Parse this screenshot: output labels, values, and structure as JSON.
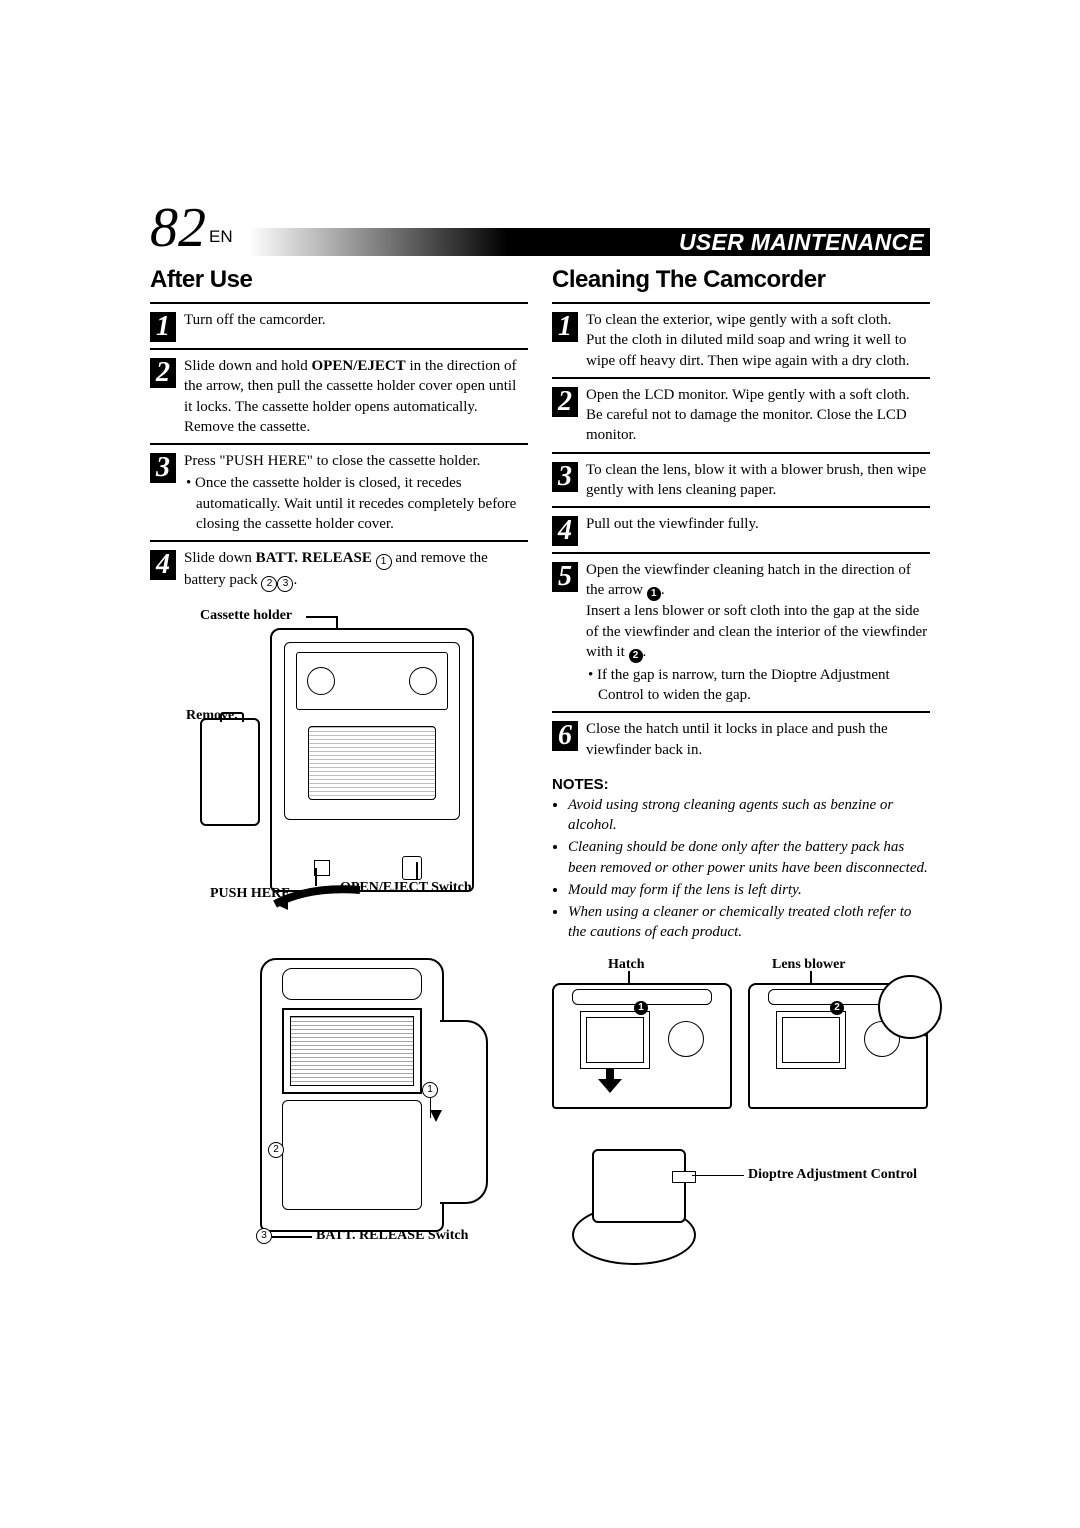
{
  "pageNumber": "82",
  "langSuffix": "EN",
  "ribbonTitle": "USER MAINTENANCE",
  "leftColumn": {
    "heading": "After Use",
    "steps": [
      {
        "num": "1",
        "html": "Turn off the camcorder."
      },
      {
        "num": "2",
        "html": "Slide down and hold <span class='b'>OPEN/EJECT</span> in the direction of the arrow, then pull the cassette holder cover open until it locks. The cassette holder opens automatically. Remove the cassette."
      },
      {
        "num": "3",
        "html": "Press \"PUSH HERE\" to close the cassette holder.<span class='bullet'>• Once the cassette holder is closed, it recedes automatically. Wait until it recedes completely before closing the cassette holder cover.</span>"
      },
      {
        "num": "4",
        "html": "Slide down <span class='b'>BATT. RELEASE</span> <span class='circ'>1</span> and remove the battery pack <span class='circ'>2</span><span class='circ'>3</span>."
      }
    ],
    "labels": {
      "cassetteHolder": "Cassette holder",
      "remove": "Remove.",
      "pushHere": "PUSH HERE",
      "openEject": "OPEN/EJECT Switch",
      "battRelease": "BATT. RELEASE Switch"
    },
    "circles": {
      "c1": "1",
      "c2": "2",
      "c3": "3"
    }
  },
  "rightColumn": {
    "heading": "Cleaning The Camcorder",
    "steps": [
      {
        "num": "1",
        "html": "To clean the exterior, wipe gently with a soft cloth.<br>Put the cloth in diluted mild soap and wring it well to wipe off heavy dirt. Then wipe again with a dry cloth."
      },
      {
        "num": "2",
        "html": "Open the LCD monitor. Wipe gently with a soft cloth.  Be careful not to damage the monitor. Close the LCD monitor."
      },
      {
        "num": "3",
        "html": "To clean the lens, blow it with a blower brush, then wipe gently with lens cleaning paper."
      },
      {
        "num": "4",
        "html": "Pull out the viewfinder fully."
      },
      {
        "num": "5",
        "html": "Open the viewfinder cleaning hatch in the direction of the arrow <span class='solidcirc'>1</span>.<br>Insert a lens blower or soft cloth into the gap at the side of the viewfinder and clean the interior of the viewfinder with it <span class='solidcirc'>2</span>.<span class='bullet'>• If the gap is narrow, turn the Dioptre Adjustment Control to widen the gap.</span>"
      },
      {
        "num": "6",
        "html": "Close the hatch until it locks in place and push the viewfinder back in."
      }
    ],
    "notesHead": "NOTES:",
    "notes": [
      "Avoid using strong cleaning agents such as benzine or alcohol.",
      "Cleaning should be done only after the battery pack has been removed or other power units have been disconnected.",
      "Mould may form if the lens is left dirty.",
      "When using a cleaner or chemically treated cloth refer to the cautions of each product."
    ],
    "labels": {
      "hatch": "Hatch",
      "lensBlower": "Lens blower",
      "dioptre": "Dioptre Adjustment Control"
    },
    "solid": {
      "s1": "1",
      "s2": "2"
    }
  }
}
